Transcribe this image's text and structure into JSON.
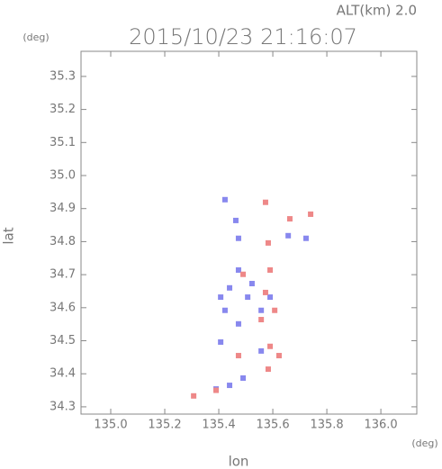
{
  "chart_data": {
    "type": "scatter",
    "title": "2015/10/23 21:16:07",
    "subtitle": "ALT(km) 2.0",
    "y_unit": "(deg)",
    "x_unit": "(deg)",
    "x_label": "lon",
    "y_label": "lat",
    "xlim": [
      134.89,
      136.133
    ],
    "ylim": [
      34.278,
      35.376
    ],
    "xticks": [
      {
        "value": 135.0,
        "label": "135.0"
      },
      135.2,
      135.4,
      135.6,
      135.8,
      {
        "value": 136.0,
        "label": "136.0"
      }
    ],
    "yticks": [
      34.3,
      34.4,
      34.5,
      34.6,
      34.7,
      34.8,
      34.9,
      {
        "value": 35.0,
        "label": "35.0"
      },
      35.1,
      35.2,
      35.3
    ],
    "series": [
      {
        "color": "#8888ee",
        "x": [
          135.423,
          135.463,
          135.473,
          135.657,
          135.723,
          135.473,
          135.44,
          135.507,
          135.557,
          135.423,
          135.473,
          135.407,
          135.557,
          135.49,
          135.44,
          135.39,
          135.523,
          135.59,
          135.407
        ],
        "values": [
          34.927,
          34.864,
          34.81,
          34.818,
          34.81,
          34.714,
          34.66,
          34.632,
          34.592,
          34.592,
          34.551,
          34.496,
          34.469,
          34.387,
          34.365,
          34.354,
          34.673,
          34.632,
          34.632
        ]
      },
      {
        "color": "#ee8888",
        "x": [
          135.573,
          135.663,
          135.74,
          135.583,
          135.59,
          135.49,
          135.573,
          135.557,
          135.59,
          135.623,
          135.583,
          135.39,
          135.307,
          135.473,
          135.607
        ],
        "values": [
          34.919,
          34.869,
          34.883,
          34.796,
          34.714,
          34.701,
          34.646,
          34.564,
          34.483,
          34.455,
          34.414,
          34.35,
          34.333,
          34.455,
          34.592
        ]
      }
    ]
  }
}
